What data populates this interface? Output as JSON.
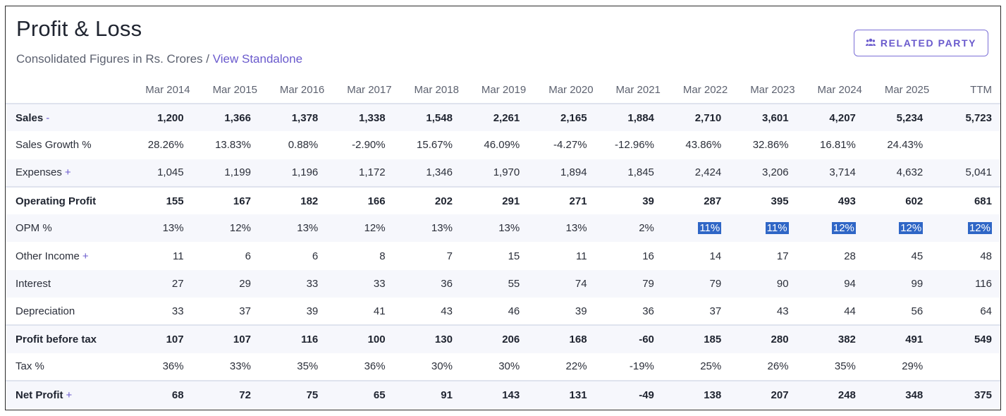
{
  "header": {
    "title": "Profit & Loss",
    "subtitle_prefix": "Consolidated Figures in Rs. Crores / ",
    "subtitle_link": "View Standalone",
    "related_party_label": "RELATED PARTY",
    "related_party_icon": "users-icon"
  },
  "table": {
    "columns": [
      "Mar 2014",
      "Mar 2015",
      "Mar 2016",
      "Mar 2017",
      "Mar 2018",
      "Mar 2019",
      "Mar 2020",
      "Mar 2021",
      "Mar 2022",
      "Mar 2023",
      "Mar 2024",
      "Mar 2025",
      "TTM"
    ],
    "rows": [
      {
        "label": "Sales",
        "toggle": "-",
        "bold": true,
        "values": [
          "1,200",
          "1,366",
          "1,378",
          "1,338",
          "1,548",
          "2,261",
          "2,165",
          "1,884",
          "2,710",
          "3,601",
          "4,207",
          "5,234",
          "5,723"
        ]
      },
      {
        "label": "Sales Growth %",
        "toggle": "",
        "bold": false,
        "values": [
          "28.26%",
          "13.83%",
          "0.88%",
          "-2.90%",
          "15.67%",
          "46.09%",
          "-4.27%",
          "-12.96%",
          "43.86%",
          "32.86%",
          "16.81%",
          "24.43%",
          ""
        ]
      },
      {
        "label": "Expenses",
        "toggle": "+",
        "bold": false,
        "values": [
          "1,045",
          "1,199",
          "1,196",
          "1,172",
          "1,346",
          "1,970",
          "1,894",
          "1,845",
          "2,424",
          "3,206",
          "3,714",
          "4,632",
          "5,041"
        ]
      },
      {
        "label": "Operating Profit",
        "toggle": "",
        "bold": true,
        "values": [
          "155",
          "167",
          "182",
          "166",
          "202",
          "291",
          "271",
          "39",
          "287",
          "395",
          "493",
          "602",
          "681"
        ]
      },
      {
        "label": "OPM %",
        "toggle": "",
        "bold": false,
        "values": [
          "13%",
          "12%",
          "13%",
          "12%",
          "13%",
          "13%",
          "13%",
          "2%",
          "11%",
          "11%",
          "12%",
          "12%",
          "12%"
        ],
        "highlighted_from": 8
      },
      {
        "label": "Other Income",
        "toggle": "+",
        "bold": false,
        "values": [
          "11",
          "6",
          "6",
          "8",
          "7",
          "15",
          "11",
          "16",
          "14",
          "17",
          "28",
          "45",
          "48"
        ]
      },
      {
        "label": "Interest",
        "toggle": "",
        "bold": false,
        "values": [
          "27",
          "29",
          "33",
          "33",
          "36",
          "55",
          "74",
          "79",
          "79",
          "90",
          "94",
          "99",
          "116"
        ]
      },
      {
        "label": "Depreciation",
        "toggle": "",
        "bold": false,
        "values": [
          "33",
          "37",
          "39",
          "41",
          "43",
          "46",
          "39",
          "36",
          "37",
          "43",
          "44",
          "56",
          "64"
        ]
      },
      {
        "label": "Profit before tax",
        "toggle": "",
        "bold": true,
        "values": [
          "107",
          "107",
          "116",
          "100",
          "130",
          "206",
          "168",
          "-60",
          "185",
          "280",
          "382",
          "491",
          "549"
        ]
      },
      {
        "label": "Tax %",
        "toggle": "",
        "bold": false,
        "values": [
          "36%",
          "33%",
          "35%",
          "36%",
          "30%",
          "30%",
          "22%",
          "-19%",
          "25%",
          "26%",
          "35%",
          "29%",
          ""
        ]
      },
      {
        "label": "Net Profit",
        "toggle": "+",
        "bold": true,
        "values": [
          "68",
          "72",
          "75",
          "65",
          "91",
          "143",
          "131",
          "-49",
          "138",
          "207",
          "248",
          "348",
          "375"
        ]
      }
    ]
  },
  "colors": {
    "accent": "#6a5acd",
    "highlight": "#2f66c6",
    "row_alt": "#f6f7fc"
  }
}
